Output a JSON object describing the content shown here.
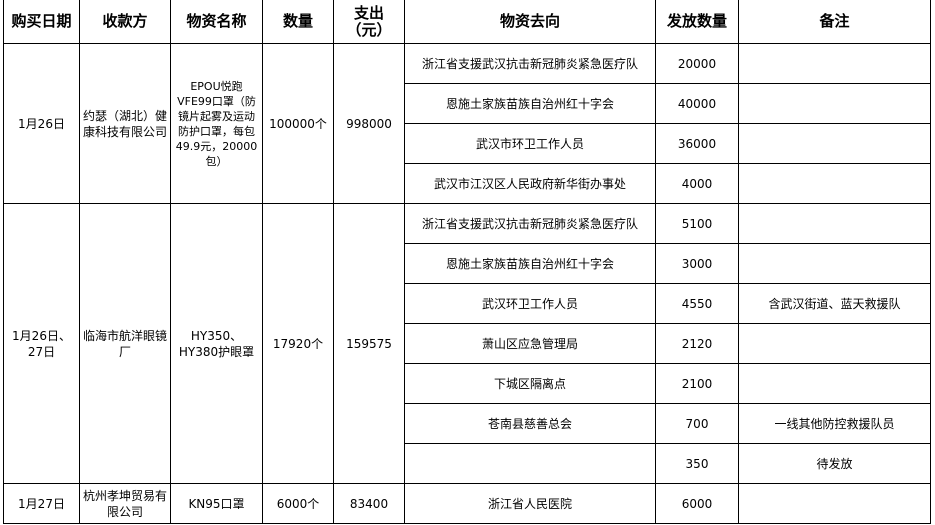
{
  "headers": [
    "购买日期",
    "收款方",
    "物资名称",
    "数量",
    "支出（元）",
    "物资去向",
    "发放数量",
    "备注"
  ],
  "groups": [
    {
      "date": "1月26日",
      "payee": "约瑟（湖北）健康科技有限公司",
      "item": "EPOU悦跑VFE99口罩（防镜片起雾及运动防护口罩，每包49.9元，20000包）",
      "qty": "100000个",
      "cost": "998000",
      "rows": [
        {
          "dest": "浙江省支援武汉抗击新冠肺炎紧急医疗队",
          "num": "20000",
          "note": ""
        },
        {
          "dest": "恩施土家族苗族自治州红十字会",
          "num": "40000",
          "note": ""
        },
        {
          "dest": "武汉市环卫工作人员",
          "num": "36000",
          "note": ""
        },
        {
          "dest": "武汉市江汉区人民政府新华街办事处",
          "num": "4000",
          "note": ""
        }
      ]
    },
    {
      "date": "1月26日、27日",
      "payee": "临海市航洋眼镜厂",
      "item": "HY350、HY380护眼罩",
      "qty": "17920个",
      "cost": "159575",
      "rows": [
        {
          "dest": "浙江省支援武汉抗击新冠肺炎紧急医疗队",
          "num": "5100",
          "note": ""
        },
        {
          "dest": "恩施土家族苗族自治州红十字会",
          "num": "3000",
          "note": ""
        },
        {
          "dest": "武汉环卫工作人员",
          "num": "4550",
          "note": "含武汉街道、蓝天救援队"
        },
        {
          "dest": "萧山区应急管理局",
          "num": "2120",
          "note": ""
        },
        {
          "dest": "下城区隔离点",
          "num": "2100",
          "note": ""
        },
        {
          "dest": "苍南县慈善总会",
          "num": "700",
          "note": "一线其他防控救援队员"
        },
        {
          "dest": "",
          "num": "350",
          "note": "待发放"
        }
      ]
    },
    {
      "date": "1月27日",
      "payee": "杭州孝坤贸易有限公司",
      "item": "KN95口罩",
      "qty": "6000个",
      "cost": "83400",
      "rows": [
        {
          "dest": "浙江省人民医院",
          "num": "6000",
          "note": ""
        }
      ]
    }
  ]
}
